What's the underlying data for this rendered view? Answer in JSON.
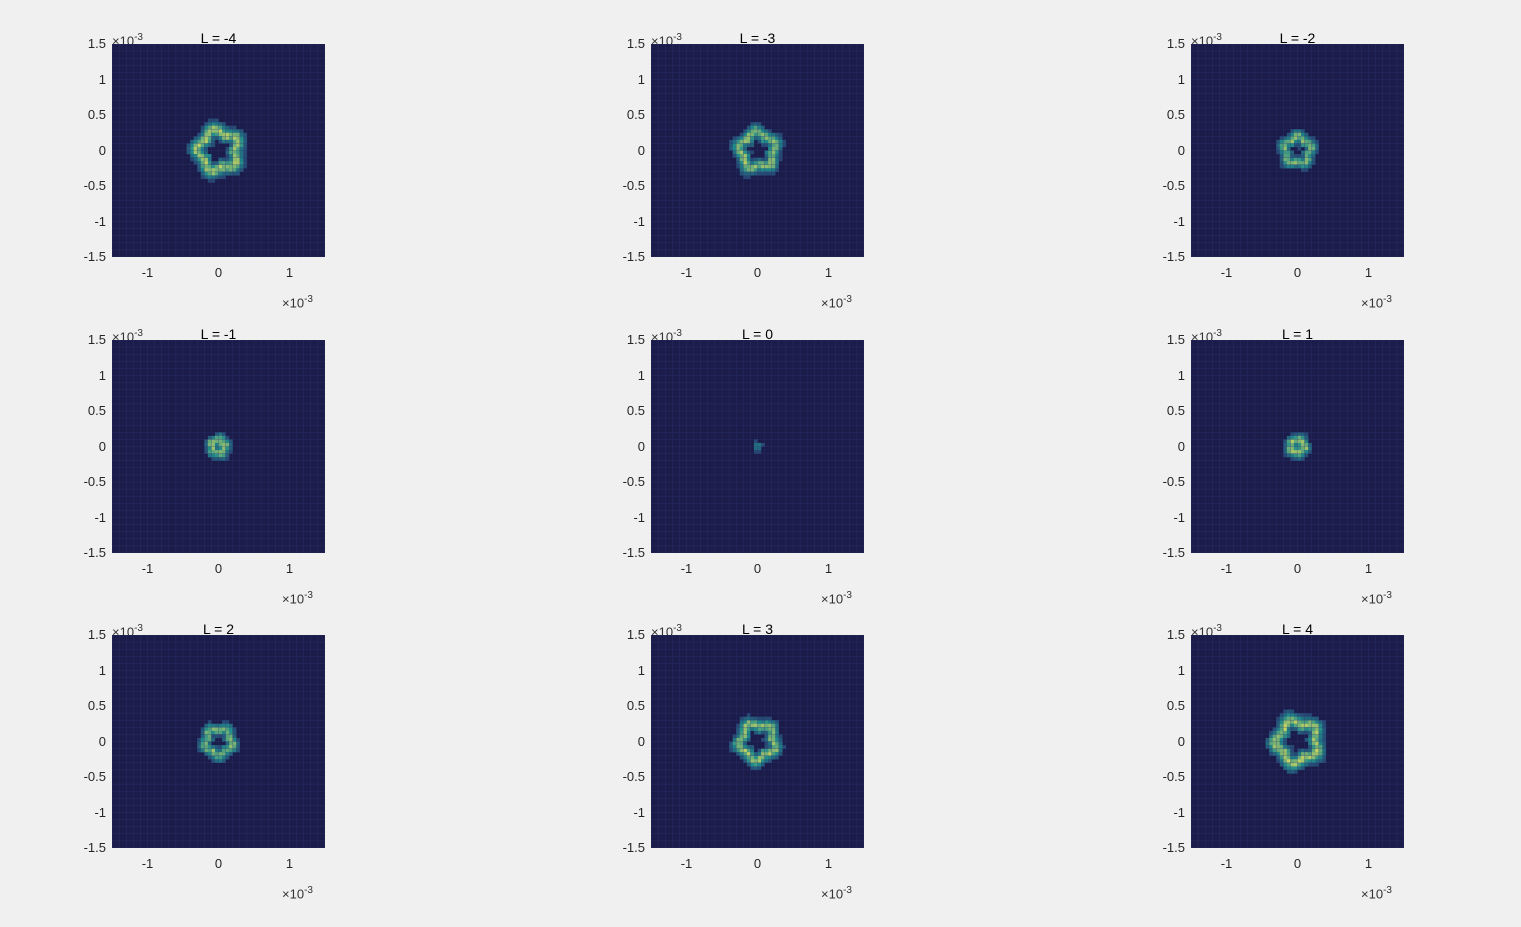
{
  "chart_data": [
    {
      "type": "heatmap",
      "title": "L = -4",
      "L": -4,
      "xlim": [
        -1.5,
        1.5
      ],
      "ylim": [
        -1.5,
        1.5
      ],
      "xticks": [
        "-1",
        "0",
        "1"
      ],
      "yticks": [
        "1.5",
        "1",
        "0.5",
        "0",
        "-0.5",
        "-1",
        "-1.5"
      ],
      "x_exponent": "×10",
      "exp_power": "-3",
      "y_exponent": "×10",
      "features": {
        "shape": "ring",
        "ring_radius": 0.27,
        "ring_width": 0.1,
        "peak_intensity": 0.9
      }
    },
    {
      "type": "heatmap",
      "title": "L = -3",
      "L": -3,
      "xlim": [
        -1.5,
        1.5
      ],
      "ylim": [
        -1.5,
        1.5
      ],
      "xticks": [
        "-1",
        "0",
        "1"
      ],
      "yticks": [
        "1.5",
        "1",
        "0.5",
        "0",
        "-0.5",
        "-1",
        "-1.5"
      ],
      "x_exponent": "×10",
      "exp_power": "-3",
      "y_exponent": "×10",
      "features": {
        "shape": "ring",
        "ring_radius": 0.24,
        "ring_width": 0.09,
        "peak_intensity": 0.85
      }
    },
    {
      "type": "heatmap",
      "title": "L = -2",
      "L": -2,
      "xlim": [
        -1.5,
        1.5
      ],
      "ylim": [
        -1.5,
        1.5
      ],
      "xticks": [
        "-1",
        "0",
        "1"
      ],
      "yticks": [
        "1.5",
        "1",
        "0.5",
        "0",
        "-0.5",
        "-1",
        "-1.5"
      ],
      "x_exponent": "×10",
      "exp_power": "-3",
      "y_exponent": "×10",
      "features": {
        "shape": "ring",
        "ring_radius": 0.18,
        "ring_width": 0.08,
        "peak_intensity": 0.8
      }
    },
    {
      "type": "heatmap",
      "title": "L = -1",
      "L": -1,
      "xlim": [
        -1.5,
        1.5
      ],
      "ylim": [
        -1.5,
        1.5
      ],
      "xticks": [
        "-1",
        "0",
        "1"
      ],
      "yticks": [
        "1.5",
        "1",
        "0.5",
        "0",
        "-0.5",
        "-1",
        "-1.5"
      ],
      "x_exponent": "×10",
      "exp_power": "-3",
      "y_exponent": "×10",
      "features": {
        "shape": "ring",
        "ring_radius": 0.09,
        "ring_width": 0.08,
        "peak_intensity": 0.85
      }
    },
    {
      "type": "heatmap",
      "title": "L = 0",
      "L": 0,
      "xlim": [
        -1.5,
        1.5
      ],
      "ylim": [
        -1.5,
        1.5
      ],
      "xticks": [
        "-1",
        "0",
        "1"
      ],
      "yticks": [
        "1.5",
        "1",
        "0.5",
        "0",
        "-0.5",
        "-1",
        "-1.5"
      ],
      "x_exponent": "×10",
      "exp_power": "-3",
      "y_exponent": "×10",
      "features": {
        "shape": "spot",
        "ring_radius": 0.0,
        "ring_width": 0.06,
        "peak_intensity": 0.55
      }
    },
    {
      "type": "heatmap",
      "title": "L = 1",
      "L": 1,
      "xlim": [
        -1.5,
        1.5
      ],
      "ylim": [
        -1.5,
        1.5
      ],
      "xticks": [
        "-1",
        "0",
        "1"
      ],
      "yticks": [
        "1.5",
        "1",
        "0.5",
        "0",
        "-0.5",
        "-1",
        "-1.5"
      ],
      "x_exponent": "×10",
      "exp_power": "-3",
      "y_exponent": "×10",
      "features": {
        "shape": "ring",
        "ring_radius": 0.09,
        "ring_width": 0.08,
        "peak_intensity": 0.85
      }
    },
    {
      "type": "heatmap",
      "title": "L = 2",
      "L": 2,
      "xlim": [
        -1.5,
        1.5
      ],
      "ylim": [
        -1.5,
        1.5
      ],
      "xticks": [
        "-1",
        "0",
        "1"
      ],
      "yticks": [
        "1.5",
        "1",
        "0.5",
        "0",
        "-0.5",
        "-1",
        "-1.5"
      ],
      "x_exponent": "×10",
      "exp_power": "-3",
      "y_exponent": "×10",
      "features": {
        "shape": "ring",
        "ring_radius": 0.18,
        "ring_width": 0.08,
        "peak_intensity": 0.8
      }
    },
    {
      "type": "heatmap",
      "title": "L = 3",
      "L": 3,
      "xlim": [
        -1.5,
        1.5
      ],
      "ylim": [
        -1.5,
        1.5
      ],
      "xticks": [
        "-1",
        "0",
        "1"
      ],
      "yticks": [
        "1.5",
        "1",
        "0.5",
        "0",
        "-0.5",
        "-1",
        "-1.5"
      ],
      "x_exponent": "×10",
      "exp_power": "-3",
      "y_exponent": "×10",
      "features": {
        "shape": "ring",
        "ring_radius": 0.24,
        "ring_width": 0.09,
        "peak_intensity": 0.85
      }
    },
    {
      "type": "heatmap",
      "title": "L = 4",
      "L": 4,
      "xlim": [
        -1.5,
        1.5
      ],
      "ylim": [
        -1.5,
        1.5
      ],
      "xticks": [
        "-1",
        "0",
        "1"
      ],
      "yticks": [
        "1.5",
        "1",
        "0.5",
        "0",
        "-0.5",
        "-1",
        "-1.5"
      ],
      "x_exponent": "×10",
      "exp_power": "-3",
      "y_exponent": "×10",
      "features": {
        "shape": "ring",
        "ring_radius": 0.28,
        "ring_width": 0.1,
        "peak_intensity": 0.9
      }
    }
  ],
  "colors": {
    "background": "#f0f0f0",
    "plot_background": "#1c1c4a",
    "grid": "#2e3a7a",
    "low": "#2a2f6b",
    "mid": "#1f8a8a",
    "high": "#e6e35a"
  }
}
